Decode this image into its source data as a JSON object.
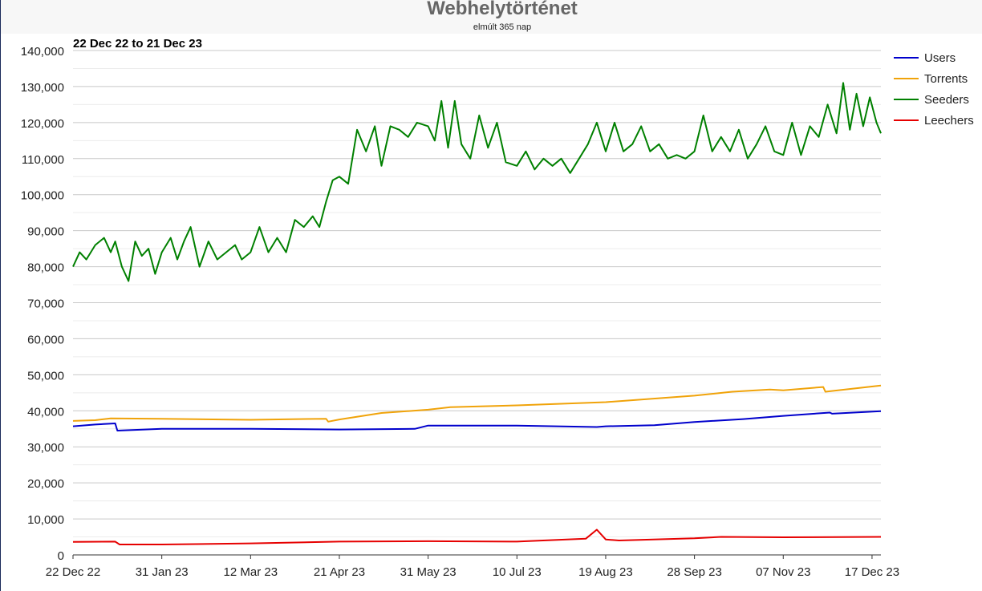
{
  "chart_data": {
    "type": "line",
    "title": "Webhelytörténet",
    "subtitle": "elmúlt 365 nap",
    "range_label": "22 Dec 22 to 21 Dec 23",
    "ylim": [
      0,
      140000
    ],
    "yticks": [
      {
        "value": 0,
        "label": "0"
      },
      {
        "value": 10000,
        "label": "10,000"
      },
      {
        "value": 20000,
        "label": "20,000"
      },
      {
        "value": 30000,
        "label": "30,000"
      },
      {
        "value": 40000,
        "label": "40,000"
      },
      {
        "value": 50000,
        "label": "50,000"
      },
      {
        "value": 60000,
        "label": "60,000"
      },
      {
        "value": 70000,
        "label": "70,000"
      },
      {
        "value": 80000,
        "label": "80,000"
      },
      {
        "value": 90000,
        "label": "90,000"
      },
      {
        "value": 100000,
        "label": "100,000"
      },
      {
        "value": 110000,
        "label": "110,000"
      },
      {
        "value": 120000,
        "label": "120,000"
      },
      {
        "value": 130000,
        "label": "130,000"
      },
      {
        "value": 140000,
        "label": "140,000"
      }
    ],
    "xlim": [
      "2022-12-22",
      "2023-12-21"
    ],
    "xticks": [
      {
        "date": "2022-12-22",
        "label": "22 Dec 22"
      },
      {
        "date": "2023-01-31",
        "label": "31 Jan 23"
      },
      {
        "date": "2023-03-12",
        "label": "12 Mar 23"
      },
      {
        "date": "2023-04-21",
        "label": "21 Apr 23"
      },
      {
        "date": "2023-05-31",
        "label": "31 May 23"
      },
      {
        "date": "2023-07-10",
        "label": "10 Jul 23"
      },
      {
        "date": "2023-08-19",
        "label": "19 Aug 23"
      },
      {
        "date": "2023-09-28",
        "label": "28 Sep 23"
      },
      {
        "date": "2023-11-07",
        "label": "07 Nov 23"
      },
      {
        "date": "2023-12-17",
        "label": "17 Dec 23"
      }
    ],
    "grid": true,
    "legend_position": "right-top",
    "series": [
      {
        "name": "Users",
        "color": "#0000cc",
        "points": [
          [
            "2022-12-22",
            35700
          ],
          [
            "2023-01-01",
            36200
          ],
          [
            "2023-01-10",
            36500
          ],
          [
            "2023-01-11",
            34500
          ],
          [
            "2023-01-31",
            35000
          ],
          [
            "2023-03-12",
            35000
          ],
          [
            "2023-04-21",
            34800
          ],
          [
            "2023-05-25",
            35000
          ],
          [
            "2023-05-31",
            35900
          ],
          [
            "2023-06-15",
            35900
          ],
          [
            "2023-07-10",
            35900
          ],
          [
            "2023-08-15",
            35500
          ],
          [
            "2023-08-19",
            35700
          ],
          [
            "2023-09-10",
            36000
          ],
          [
            "2023-09-28",
            36900
          ],
          [
            "2023-10-20",
            37700
          ],
          [
            "2023-11-07",
            38600
          ],
          [
            "2023-11-28",
            39500
          ],
          [
            "2023-11-29",
            39200
          ],
          [
            "2023-12-21",
            39900
          ]
        ]
      },
      {
        "name": "Torrents",
        "color": "#f0a30a",
        "points": [
          [
            "2022-12-22",
            37200
          ],
          [
            "2023-01-01",
            37400
          ],
          [
            "2023-01-08",
            37900
          ],
          [
            "2023-01-31",
            37800
          ],
          [
            "2023-03-12",
            37500
          ],
          [
            "2023-04-15",
            37800
          ],
          [
            "2023-04-16",
            37000
          ],
          [
            "2023-04-21",
            37600
          ],
          [
            "2023-05-10",
            39400
          ],
          [
            "2023-05-31",
            40300
          ],
          [
            "2023-06-10",
            41000
          ],
          [
            "2023-07-10",
            41500
          ],
          [
            "2023-08-19",
            42400
          ],
          [
            "2023-09-28",
            44200
          ],
          [
            "2023-10-15",
            45300
          ],
          [
            "2023-11-01",
            45900
          ],
          [
            "2023-11-07",
            45700
          ],
          [
            "2023-11-25",
            46600
          ],
          [
            "2023-11-26",
            45300
          ],
          [
            "2023-12-21",
            47000
          ]
        ]
      },
      {
        "name": "Seeders",
        "color": "#008000",
        "points": [
          [
            "2022-12-22",
            80000
          ],
          [
            "2022-12-25",
            84000
          ],
          [
            "2022-12-28",
            82000
          ],
          [
            "2023-01-01",
            86000
          ],
          [
            "2023-01-05",
            88000
          ],
          [
            "2023-01-08",
            84000
          ],
          [
            "2023-01-10",
            87000
          ],
          [
            "2023-01-13",
            80000
          ],
          [
            "2023-01-16",
            76000
          ],
          [
            "2023-01-19",
            87000
          ],
          [
            "2023-01-22",
            83000
          ],
          [
            "2023-01-25",
            85000
          ],
          [
            "2023-01-28",
            78000
          ],
          [
            "2023-01-31",
            84000
          ],
          [
            "2023-02-04",
            88000
          ],
          [
            "2023-02-07",
            82000
          ],
          [
            "2023-02-10",
            87000
          ],
          [
            "2023-02-13",
            91000
          ],
          [
            "2023-02-17",
            80000
          ],
          [
            "2023-02-21",
            87000
          ],
          [
            "2023-02-25",
            82000
          ],
          [
            "2023-03-01",
            84000
          ],
          [
            "2023-03-05",
            86000
          ],
          [
            "2023-03-08",
            82000
          ],
          [
            "2023-03-12",
            84000
          ],
          [
            "2023-03-16",
            91000
          ],
          [
            "2023-03-20",
            84000
          ],
          [
            "2023-03-24",
            88000
          ],
          [
            "2023-03-28",
            84000
          ],
          [
            "2023-04-01",
            93000
          ],
          [
            "2023-04-05",
            91000
          ],
          [
            "2023-04-09",
            94000
          ],
          [
            "2023-04-12",
            91000
          ],
          [
            "2023-04-15",
            98000
          ],
          [
            "2023-04-18",
            104000
          ],
          [
            "2023-04-21",
            105000
          ],
          [
            "2023-04-25",
            103000
          ],
          [
            "2023-04-29",
            118000
          ],
          [
            "2023-05-03",
            112000
          ],
          [
            "2023-05-07",
            119000
          ],
          [
            "2023-05-10",
            108000
          ],
          [
            "2023-05-14",
            119000
          ],
          [
            "2023-05-18",
            118000
          ],
          [
            "2023-05-22",
            116000
          ],
          [
            "2023-05-26",
            120000
          ],
          [
            "2023-05-31",
            119000
          ],
          [
            "2023-06-03",
            115000
          ],
          [
            "2023-06-06",
            126000
          ],
          [
            "2023-06-09",
            113000
          ],
          [
            "2023-06-12",
            126000
          ],
          [
            "2023-06-15",
            114000
          ],
          [
            "2023-06-19",
            110000
          ],
          [
            "2023-06-23",
            122000
          ],
          [
            "2023-06-27",
            113000
          ],
          [
            "2023-07-01",
            120000
          ],
          [
            "2023-07-05",
            109000
          ],
          [
            "2023-07-10",
            108000
          ],
          [
            "2023-07-14",
            112000
          ],
          [
            "2023-07-18",
            107000
          ],
          [
            "2023-07-22",
            110000
          ],
          [
            "2023-07-26",
            108000
          ],
          [
            "2023-07-30",
            110000
          ],
          [
            "2023-08-03",
            106000
          ],
          [
            "2023-08-07",
            110000
          ],
          [
            "2023-08-11",
            114000
          ],
          [
            "2023-08-15",
            120000
          ],
          [
            "2023-08-19",
            112000
          ],
          [
            "2023-08-23",
            120000
          ],
          [
            "2023-08-27",
            112000
          ],
          [
            "2023-08-31",
            114000
          ],
          [
            "2023-09-04",
            119000
          ],
          [
            "2023-09-08",
            112000
          ],
          [
            "2023-09-12",
            114000
          ],
          [
            "2023-09-16",
            110000
          ],
          [
            "2023-09-20",
            111000
          ],
          [
            "2023-09-24",
            110000
          ],
          [
            "2023-09-28",
            112000
          ],
          [
            "2023-10-02",
            122000
          ],
          [
            "2023-10-06",
            112000
          ],
          [
            "2023-10-10",
            116000
          ],
          [
            "2023-10-14",
            112000
          ],
          [
            "2023-10-18",
            118000
          ],
          [
            "2023-10-22",
            110000
          ],
          [
            "2023-10-26",
            114000
          ],
          [
            "2023-10-30",
            119000
          ],
          [
            "2023-11-03",
            112000
          ],
          [
            "2023-11-07",
            111000
          ],
          [
            "2023-11-11",
            120000
          ],
          [
            "2023-11-15",
            111000
          ],
          [
            "2023-11-19",
            119000
          ],
          [
            "2023-11-23",
            116000
          ],
          [
            "2023-11-27",
            125000
          ],
          [
            "2023-12-01",
            117000
          ],
          [
            "2023-12-04",
            131000
          ],
          [
            "2023-12-07",
            118000
          ],
          [
            "2023-12-10",
            128000
          ],
          [
            "2023-12-13",
            119000
          ],
          [
            "2023-12-16",
            127000
          ],
          [
            "2023-12-19",
            120000
          ],
          [
            "2023-12-21",
            117000
          ]
        ]
      },
      {
        "name": "Leechers",
        "color": "#e60000",
        "points": [
          [
            "2022-12-22",
            3600
          ],
          [
            "2023-01-10",
            3700
          ],
          [
            "2023-01-12",
            2900
          ],
          [
            "2023-01-31",
            2900
          ],
          [
            "2023-03-12",
            3200
          ],
          [
            "2023-04-21",
            3700
          ],
          [
            "2023-05-31",
            3800
          ],
          [
            "2023-07-10",
            3700
          ],
          [
            "2023-08-10",
            4500
          ],
          [
            "2023-08-15",
            7000
          ],
          [
            "2023-08-19",
            4300
          ],
          [
            "2023-08-25",
            4000
          ],
          [
            "2023-09-28",
            4600
          ],
          [
            "2023-10-10",
            5000
          ],
          [
            "2023-11-07",
            4900
          ],
          [
            "2023-12-21",
            5000
          ]
        ]
      }
    ]
  }
}
